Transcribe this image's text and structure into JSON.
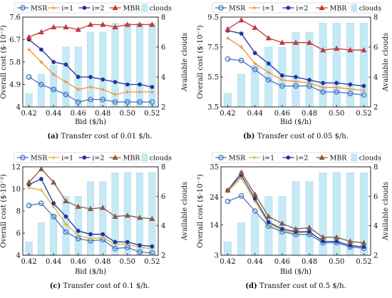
{
  "chart_data": [
    {
      "type": "line",
      "caption_label": "(a)",
      "caption_text": "Transfer cost of 0.01 $/h.",
      "xlabel": "Bid ($/h)",
      "ylabel": "Overall cost ($·10⁻³)",
      "y2label": "Available clouds",
      "x": [
        0.42,
        0.43,
        0.44,
        0.45,
        0.46,
        0.47,
        0.48,
        0.49,
        0.5,
        0.51,
        0.52
      ],
      "xticks": [
        "0.42",
        "0.44",
        "0.46",
        "0.48",
        "0.50",
        "0.52"
      ],
      "xlim": [
        0.415,
        0.525
      ],
      "ylim": [
        4.0,
        7.6
      ],
      "yticks": [
        "4",
        "4.9",
        "5.8",
        "6.7",
        "7.6"
      ],
      "y2lim": [
        2,
        8
      ],
      "y2ticks": [
        "2",
        "4",
        "6",
        "8"
      ],
      "bars": [
        2.9,
        4.2,
        4.8,
        6.0,
        6.0,
        7.0,
        7.0,
        7.6,
        7.6,
        7.6,
        7.6
      ],
      "series": [
        {
          "name": "MSR",
          "values": [
            5.2,
            4.9,
            4.7,
            4.5,
            4.2,
            4.3,
            4.3,
            4.2,
            4.2,
            4.2,
            4.2
          ]
        },
        {
          "name": "i=1",
          "values": [
            6.3,
            5.8,
            5.3,
            5.0,
            4.7,
            4.8,
            4.7,
            4.5,
            4.6,
            4.6,
            4.6
          ]
        },
        {
          "name": "i=2",
          "values": [
            6.7,
            6.3,
            5.8,
            5.7,
            5.2,
            5.2,
            5.1,
            5.0,
            4.9,
            4.9,
            4.8
          ]
        },
        {
          "name": "MBR",
          "values": [
            6.8,
            7.0,
            7.2,
            7.2,
            7.1,
            7.3,
            7.3,
            7.2,
            7.3,
            7.3,
            7.3
          ]
        }
      ]
    },
    {
      "type": "line",
      "caption_label": "(b)",
      "caption_text": "Transfer cost of 0.05 $/h.",
      "xlabel": "Bid ($/h)",
      "ylabel": "Overall cost ($·10⁻³)",
      "y2label": "Available clouds",
      "x": [
        0.42,
        0.43,
        0.44,
        0.45,
        0.46,
        0.47,
        0.48,
        0.49,
        0.5,
        0.51,
        0.52
      ],
      "xticks": [
        "0.42",
        "0.44",
        "0.46",
        "0.48",
        "0.50",
        "0.52"
      ],
      "xlim": [
        0.415,
        0.525
      ],
      "ylim": [
        3.5,
        9.5
      ],
      "yticks": [
        "3.5",
        "5.5",
        "7.5",
        "9.5"
      ],
      "y2lim": [
        2,
        8
      ],
      "y2ticks": [
        "2",
        "4",
        "6",
        "8"
      ],
      "bars": [
        2.9,
        4.2,
        4.8,
        6.0,
        6.0,
        7.0,
        7.0,
        7.6,
        7.6,
        7.6,
        7.6
      ],
      "series": [
        {
          "name": "MSR",
          "values": [
            6.7,
            6.6,
            6.0,
            5.3,
            4.9,
            4.9,
            4.9,
            4.5,
            4.5,
            4.4,
            4.3
          ]
        },
        {
          "name": "i=1",
          "values": [
            8.1,
            7.5,
            6.4,
            5.8,
            5.3,
            5.2,
            5.1,
            4.8,
            4.8,
            4.7,
            4.6
          ]
        },
        {
          "name": "i=2",
          "values": [
            8.6,
            8.4,
            7.1,
            6.4,
            5.6,
            5.5,
            5.3,
            5.1,
            5.1,
            5.0,
            4.9
          ]
        },
        {
          "name": "MBR",
          "values": [
            8.7,
            9.3,
            8.8,
            8.1,
            7.8,
            7.8,
            7.8,
            7.3,
            7.4,
            7.3,
            7.3
          ]
        }
      ]
    },
    {
      "type": "line",
      "caption_label": "(c)",
      "caption_text": "Transfer cost of 0.1 $/h.",
      "xlabel": "Bid ($/h)",
      "ylabel": "Overall cost ($·10⁻³)",
      "y2label": "Available clouds",
      "x": [
        0.42,
        0.43,
        0.44,
        0.45,
        0.46,
        0.47,
        0.48,
        0.49,
        0.5,
        0.51,
        0.52
      ],
      "xticks": [
        "0.42",
        "0.44",
        "0.46",
        "0.48",
        "0.50",
        "0.52"
      ],
      "xlim": [
        0.415,
        0.525
      ],
      "ylim": [
        4,
        12
      ],
      "yticks": [
        "4",
        "6",
        "8",
        "10",
        "12"
      ],
      "y2lim": [
        2,
        8
      ],
      "y2ticks": [
        "2",
        "4",
        "6",
        "8"
      ],
      "bars": [
        2.9,
        4.2,
        4.8,
        6.0,
        6.0,
        7.0,
        7.0,
        7.6,
        7.6,
        7.6,
        7.6
      ],
      "series": [
        {
          "name": "MSR",
          "values": [
            8.5,
            8.7,
            7.5,
            6.1,
            5.5,
            5.3,
            5.4,
            4.6,
            4.7,
            4.3,
            4.2
          ]
        },
        {
          "name": "i=1",
          "values": [
            10.1,
            9.9,
            8.4,
            6.8,
            5.8,
            5.5,
            5.6,
            5.0,
            5.0,
            4.7,
            4.6
          ]
        },
        {
          "name": "i=2",
          "values": [
            10.4,
            10.9,
            8.7,
            7.5,
            6.2,
            5.9,
            5.9,
            5.2,
            5.2,
            4.9,
            4.8
          ]
        },
        {
          "name": "MBR",
          "values": [
            10.6,
            11.8,
            10.6,
            8.9,
            8.4,
            8.2,
            8.3,
            7.5,
            7.6,
            7.4,
            7.3
          ]
        }
      ]
    },
    {
      "type": "line",
      "caption_label": "(d)",
      "caption_text": "Transfer cost of 0.5 $/h.",
      "xlabel": "Bid ($/h)",
      "ylabel": "Overall cost ($·10⁻³)",
      "y2label": "Available clouds",
      "x": [
        0.42,
        0.43,
        0.44,
        0.45,
        0.46,
        0.47,
        0.48,
        0.49,
        0.5,
        0.51,
        0.52
      ],
      "xticks": [
        "0.42",
        "0.44",
        "0.46",
        "0.48",
        "0.50",
        "0.52"
      ],
      "xlim": [
        0.415,
        0.525
      ],
      "ylim": [
        3,
        35
      ],
      "yticks": [
        "3",
        "14",
        "24",
        "35"
      ],
      "y2lim": [
        2,
        8
      ],
      "y2ticks": [
        "2",
        "4",
        "6",
        "8"
      ],
      "bars": [
        2.9,
        4.2,
        4.8,
        6.0,
        6.0,
        7.0,
        7.0,
        7.6,
        7.6,
        7.6,
        7.6
      ],
      "series": [
        {
          "name": "MSR",
          "values": [
            22.5,
            24.5,
            19.0,
            13.5,
            11.5,
            10.5,
            10.5,
            7.5,
            7.5,
            6.0,
            5.5
          ]
        },
        {
          "name": "i=1",
          "values": [
            26.0,
            31.0,
            22.5,
            14.5,
            12.0,
            11.0,
            11.5,
            8.0,
            8.0,
            6.5,
            6.0
          ]
        },
        {
          "name": "i=2",
          "values": [
            26.5,
            32.0,
            23.5,
            15.0,
            12.5,
            11.5,
            11.5,
            8.0,
            8.0,
            6.5,
            6.0
          ]
        },
        {
          "name": "MBR",
          "values": [
            26.5,
            33.0,
            25.0,
            17.0,
            14.5,
            12.5,
            13.0,
            9.5,
            9.5,
            8.0,
            7.5
          ]
        }
      ]
    }
  ],
  "legend": {
    "entries": [
      "MSR",
      "i=1",
      "i=2",
      "MBR",
      "clouds"
    ],
    "placement": "top"
  },
  "colors": {
    "MSR": "#4a74c4",
    "i=1": "#f0923a",
    "i=2": "#26339a",
    "MBR": "#c13a3a",
    "MBR_c": "#8a5a44",
    "i1_c": "#d8b338",
    "clouds": "#c6e9f6",
    "clouds_edge": "#a9d8ea",
    "axis": "#111111"
  }
}
